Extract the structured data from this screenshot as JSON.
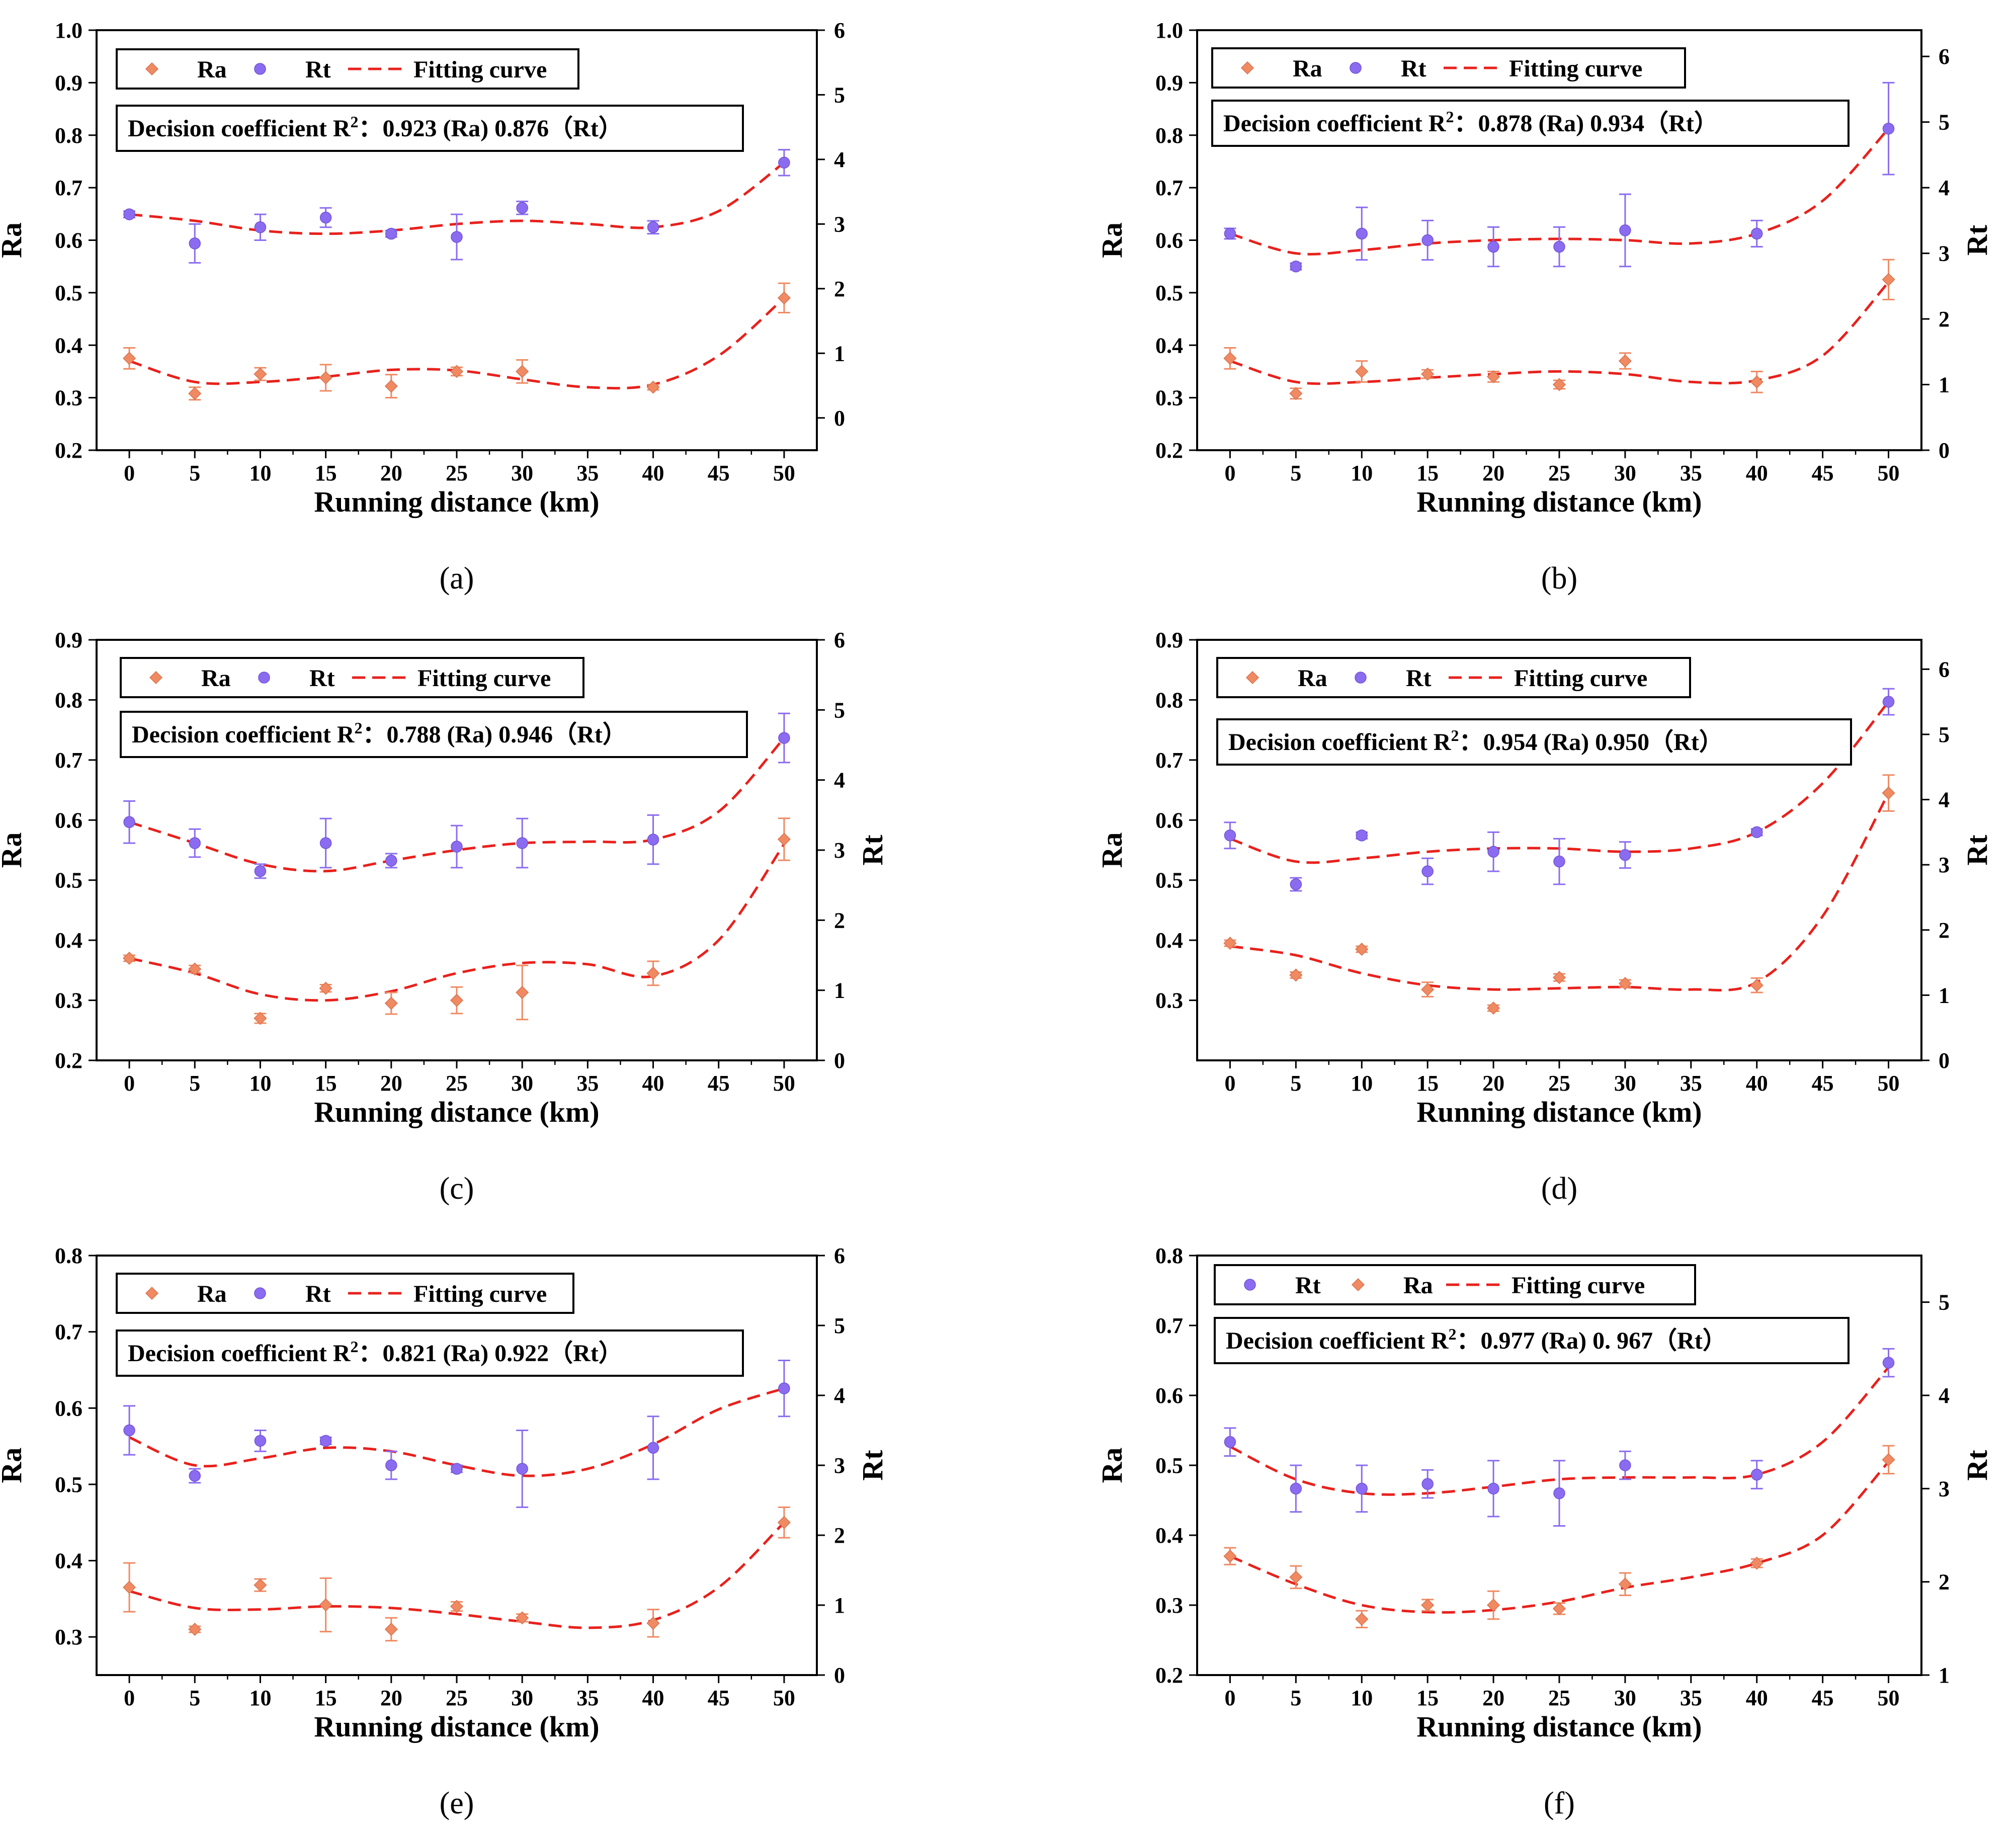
{
  "colors": {
    "ra": "#ef8a62",
    "rt": "#8b6cf0",
    "fit": "#e8211c",
    "axis": "#000000"
  },
  "chart_data": [
    {
      "panel": "a",
      "caption": "(a)",
      "type": "scatter",
      "xlabel": "Running distance (km)",
      "ylabel_left": "Ra",
      "ylabel_right": "",
      "xlim": [
        -2.5,
        52.5
      ],
      "xticks": [
        "0",
        "5",
        "10",
        "15",
        "20",
        "25",
        "30",
        "35",
        "40",
        "45",
        "50"
      ],
      "ylim_left": [
        0.2,
        1.0
      ],
      "yticks_left": [
        "0.2",
        "0.3",
        "0.4",
        "0.5",
        "0.6",
        "0.7",
        "0.8",
        "0.9",
        "1.0"
      ],
      "ylim_right": [
        -0.5,
        6
      ],
      "yticks_right": [
        "0",
        "1",
        "2",
        "3",
        "4",
        "5",
        "6"
      ],
      "legend": [
        "Ra",
        "Rt",
        "Fitting curve"
      ],
      "legend_order": [
        "ra",
        "rt",
        "fit"
      ],
      "r2_text": {
        "label": "Decision coefficient R",
        "sup": "2",
        "rest": "：0.923 (Ra)   0.876（Rt）"
      },
      "x": [
        0,
        5,
        10,
        15,
        20,
        25,
        30,
        40,
        50
      ],
      "series": [
        {
          "name": "Ra",
          "axis": "left",
          "values": [
            0.375,
            0.308,
            0.345,
            0.338,
            0.322,
            0.35,
            0.35,
            0.32,
            0.49
          ],
          "errors": [
            0.02,
            0.012,
            0.012,
            0.025,
            0.022,
            0.008,
            0.022,
            0.005,
            0.028
          ]
        },
        {
          "name": "Rt",
          "axis": "right",
          "values": [
            3.15,
            2.7,
            2.95,
            3.1,
            2.85,
            2.8,
            3.25,
            2.95,
            3.95
          ],
          "errors": [
            0.05,
            0.3,
            0.2,
            0.15,
            0.05,
            0.35,
            0.1,
            0.1,
            0.2
          ]
        }
      ],
      "fit_ra": {
        "x": [
          0,
          5,
          10,
          15,
          20,
          25,
          30,
          35,
          40,
          45,
          50
        ],
        "y": [
          0.37,
          0.33,
          0.33,
          0.34,
          0.353,
          0.352,
          0.335,
          0.32,
          0.325,
          0.38,
          0.49
        ]
      },
      "fit_rt": {
        "x": [
          0,
          5,
          10,
          15,
          20,
          25,
          30,
          35,
          40,
          45,
          50
        ],
        "y": [
          3.15,
          3.05,
          2.9,
          2.85,
          2.9,
          3.0,
          3.05,
          3.0,
          2.95,
          3.2,
          3.95
        ]
      }
    },
    {
      "panel": "b",
      "caption": "(b)",
      "type": "scatter",
      "xlabel": "Running distance (km)",
      "ylabel_left": "Ra",
      "ylabel_right": "Rt",
      "xlim": [
        -2.5,
        52.5
      ],
      "xticks": [
        "0",
        "5",
        "10",
        "15",
        "20",
        "25",
        "30",
        "35",
        "40",
        "45",
        "50"
      ],
      "ylim_left": [
        0.2,
        1.0
      ],
      "yticks_left": [
        "0.2",
        "0.3",
        "0.4",
        "0.5",
        "0.6",
        "0.7",
        "0.8",
        "0.9",
        "1.0"
      ],
      "ylim_right": [
        0,
        6.4
      ],
      "yticks_right": [
        "0",
        "1",
        "2",
        "3",
        "4",
        "5",
        "6"
      ],
      "legend": [
        "Ra",
        "Rt",
        "Fitting curve"
      ],
      "legend_order": [
        "ra",
        "rt",
        "fit"
      ],
      "r2_text": {
        "label": "Decision coefficient R",
        "sup": "2",
        "rest": "：0.878 (Ra)   0.934（Rt）"
      },
      "x": [
        0,
        5,
        10,
        15,
        20,
        25,
        30,
        40,
        50
      ],
      "series": [
        {
          "name": "Ra",
          "axis": "left",
          "values": [
            0.375,
            0.308,
            0.35,
            0.345,
            0.34,
            0.325,
            0.37,
            0.33,
            0.525
          ],
          "errors": [
            0.02,
            0.01,
            0.02,
            0.008,
            0.01,
            0.008,
            0.015,
            0.02,
            0.038
          ]
        },
        {
          "name": "Rt",
          "axis": "right",
          "values": [
            3.3,
            2.8,
            3.3,
            3.2,
            3.1,
            3.1,
            3.35,
            3.3,
            4.9
          ],
          "errors": [
            0.08,
            0.05,
            0.4,
            0.3,
            0.3,
            0.3,
            0.55,
            0.2,
            0.7
          ]
        }
      ],
      "fit_ra": {
        "x": [
          0,
          5,
          10,
          15,
          20,
          25,
          30,
          35,
          40,
          45,
          50
        ],
        "y": [
          0.37,
          0.33,
          0.33,
          0.338,
          0.345,
          0.35,
          0.345,
          0.33,
          0.333,
          0.38,
          0.52
        ]
      },
      "fit_rt": {
        "x": [
          0,
          5,
          10,
          15,
          20,
          25,
          30,
          35,
          40,
          45,
          50
        ],
        "y": [
          3.3,
          3.0,
          3.05,
          3.15,
          3.2,
          3.22,
          3.2,
          3.15,
          3.3,
          3.8,
          4.9
        ]
      }
    },
    {
      "panel": "c",
      "caption": "(c)",
      "type": "scatter",
      "xlabel": "Running distance (km)",
      "ylabel_left": "Ra",
      "ylabel_right": "Rt",
      "xlim": [
        -2.5,
        52.5
      ],
      "xticks": [
        "0",
        "5",
        "10",
        "15",
        "20",
        "25",
        "30",
        "35",
        "40",
        "45",
        "50"
      ],
      "ylim_left": [
        0.2,
        0.9
      ],
      "yticks_left": [
        "0.2",
        "0.3",
        "0.4",
        "0.5",
        "0.6",
        "0.7",
        "0.8",
        "0.9"
      ],
      "ylim_right": [
        0,
        6
      ],
      "yticks_right": [
        "0",
        "1",
        "2",
        "3",
        "4",
        "5",
        "6"
      ],
      "legend": [
        "Ra",
        "Rt",
        "Fitting curve"
      ],
      "legend_order": [
        "ra",
        "rt",
        "fit"
      ],
      "r2_text": {
        "label": "Decision coefficient R",
        "sup": "2",
        "rest": "：0.788 (Ra)   0.946（Rt）"
      },
      "x": [
        0,
        5,
        10,
        15,
        20,
        25,
        30,
        40,
        50
      ],
      "series": [
        {
          "name": "Ra",
          "axis": "left",
          "values": [
            0.37,
            0.352,
            0.27,
            0.32,
            0.295,
            0.3,
            0.313,
            0.345,
            0.568
          ],
          "errors": [
            0.005,
            0.006,
            0.008,
            0.006,
            0.018,
            0.022,
            0.045,
            0.02,
            0.035
          ]
        },
        {
          "name": "Rt",
          "axis": "right",
          "values": [
            3.4,
            3.1,
            2.7,
            3.1,
            2.85,
            3.05,
            3.1,
            3.15,
            4.6
          ],
          "errors": [
            0.3,
            0.2,
            0.1,
            0.35,
            0.1,
            0.3,
            0.35,
            0.35,
            0.35
          ]
        }
      ],
      "fit_ra": {
        "x": [
          0,
          5,
          10,
          15,
          20,
          25,
          30,
          35,
          40,
          45,
          50
        ],
        "y": [
          0.37,
          0.345,
          0.31,
          0.3,
          0.315,
          0.345,
          0.362,
          0.36,
          0.34,
          0.4,
          0.56
        ]
      },
      "fit_rt": {
        "x": [
          0,
          5,
          10,
          15,
          20,
          25,
          30,
          35,
          40,
          45,
          50
        ],
        "y": [
          3.4,
          3.1,
          2.8,
          2.7,
          2.85,
          3.0,
          3.1,
          3.12,
          3.15,
          3.55,
          4.6
        ]
      }
    },
    {
      "panel": "d",
      "caption": "(d)",
      "type": "scatter",
      "xlabel": "Running distance (km)",
      "ylabel_left": "Ra",
      "ylabel_right": "Rt",
      "xlim": [
        -2.5,
        52.5
      ],
      "xticks": [
        "0",
        "5",
        "10",
        "15",
        "20",
        "25",
        "30",
        "35",
        "40",
        "45",
        "50"
      ],
      "ylim_left": [
        0.2,
        0.9
      ],
      "yticks_left": [
        "0.3",
        "0.4",
        "0.5",
        "0.6",
        "0.7",
        "0.8",
        "0.9"
      ],
      "ylim_right": [
        0,
        6.45
      ],
      "yticks_right": [
        "0",
        "1",
        "2",
        "3",
        "4",
        "5",
        "6"
      ],
      "legend": [
        "Ra",
        "Rt",
        "Fitting curve"
      ],
      "legend_order": [
        "ra",
        "rt",
        "fit"
      ],
      "r2_text": {
        "label": "Decision coefficient R",
        "sup": "2",
        "rest": "：0.954 (Ra)   0.950（Rt）"
      },
      "x": [
        0,
        5,
        10,
        15,
        20,
        25,
        30,
        40,
        50
      ],
      "series": [
        {
          "name": "Ra",
          "axis": "left",
          "values": [
            0.395,
            0.342,
            0.385,
            0.318,
            0.287,
            0.338,
            0.328,
            0.325,
            0.645
          ],
          "errors": [
            0.005,
            0.005,
            0.005,
            0.012,
            0.005,
            0.006,
            0.006,
            0.012,
            0.03
          ]
        },
        {
          "name": "Rt",
          "axis": "right",
          "values": [
            3.45,
            2.7,
            3.45,
            2.9,
            3.2,
            3.05,
            3.15,
            3.5,
            5.5
          ],
          "errors": [
            0.2,
            0.1,
            0.05,
            0.2,
            0.3,
            0.35,
            0.2,
            0.05,
            0.2
          ]
        }
      ],
      "fit_ra": {
        "x": [
          0,
          5,
          10,
          15,
          20,
          25,
          30,
          35,
          40,
          45,
          50
        ],
        "y": [
          0.39,
          0.375,
          0.345,
          0.325,
          0.318,
          0.32,
          0.322,
          0.318,
          0.33,
          0.44,
          0.645
        ]
      },
      "fit_rt": {
        "x": [
          0,
          5,
          10,
          15,
          20,
          25,
          30,
          35,
          40,
          45,
          50
        ],
        "y": [
          3.4,
          3.05,
          3.1,
          3.2,
          3.25,
          3.25,
          3.2,
          3.25,
          3.5,
          4.25,
          5.5
        ]
      }
    },
    {
      "panel": "e",
      "caption": "(e)",
      "type": "scatter",
      "xlabel": "Running distance (km)",
      "ylabel_left": "Ra",
      "ylabel_right": "Rt",
      "xlim": [
        -2.5,
        52.5
      ],
      "xticks": [
        "0",
        "5",
        "10",
        "15",
        "20",
        "25",
        "30",
        "35",
        "40",
        "45",
        "50"
      ],
      "ylim_left": [
        0.25,
        0.8
      ],
      "yticks_left": [
        "0.3",
        "0.4",
        "0.5",
        "0.6",
        "0.7",
        "0.8"
      ],
      "ylim_right": [
        0,
        6
      ],
      "yticks_right": [
        "0",
        "1",
        "2",
        "3",
        "4",
        "5",
        "6"
      ],
      "legend": [
        "Ra",
        "Rt",
        "Fitting curve"
      ],
      "legend_order": [
        "ra",
        "rt",
        "fit"
      ],
      "r2_text": {
        "label": "Decision coefficient R",
        "sup": "2",
        "rest": "：0.821 (Ra)   0.922（Rt）"
      },
      "x": [
        0,
        5,
        10,
        15,
        20,
        25,
        30,
        40,
        50
      ],
      "series": [
        {
          "name": "Ra",
          "axis": "left",
          "values": [
            0.365,
            0.31,
            0.368,
            0.342,
            0.31,
            0.34,
            0.325,
            0.318,
            0.45
          ],
          "errors": [
            0.032,
            0.004,
            0.008,
            0.035,
            0.015,
            0.006,
            0.005,
            0.018,
            0.02
          ]
        },
        {
          "name": "Rt",
          "axis": "right",
          "values": [
            3.5,
            2.85,
            3.35,
            3.35,
            3.0,
            2.95,
            2.95,
            3.25,
            4.1
          ],
          "errors": [
            0.35,
            0.1,
            0.15,
            0.05,
            0.2,
            0.05,
            0.55,
            0.45,
            0.4
          ]
        }
      ],
      "fit_ra": {
        "x": [
          0,
          5,
          10,
          15,
          20,
          25,
          30,
          35,
          40,
          45,
          50
        ],
        "y": [
          0.36,
          0.338,
          0.336,
          0.34,
          0.338,
          0.33,
          0.32,
          0.312,
          0.322,
          0.365,
          0.45
        ]
      },
      "fit_rt": {
        "x": [
          0,
          5,
          10,
          15,
          20,
          25,
          30,
          35,
          40,
          45,
          50
        ],
        "y": [
          3.4,
          3.0,
          3.1,
          3.25,
          3.2,
          3.0,
          2.85,
          2.95,
          3.3,
          3.8,
          4.1
        ]
      }
    },
    {
      "panel": "f",
      "caption": "(f)",
      "type": "scatter",
      "xlabel": "Running distance (km)",
      "ylabel_left": "Ra",
      "ylabel_right": "Rt",
      "xlim": [
        -2.5,
        52.5
      ],
      "xticks": [
        "0",
        "5",
        "10",
        "15",
        "20",
        "25",
        "30",
        "35",
        "40",
        "45",
        "50"
      ],
      "ylim_left": [
        0.2,
        0.8
      ],
      "yticks_left": [
        "0.2",
        "0.3",
        "0.4",
        "0.5",
        "0.6",
        "0.7",
        "0.8"
      ],
      "ylim_right": [
        1,
        5.5
      ],
      "yticks_right": [
        "1",
        "2",
        "3",
        "4",
        "5"
      ],
      "legend": [
        "Rt",
        "Ra",
        "Fitting curve"
      ],
      "legend_order": [
        "rt",
        "ra",
        "fit"
      ],
      "r2_text": {
        "label": "Decision coefficient R",
        "sup": "2",
        "rest": "：0.977 (Ra)  0. 967（Rt）"
      },
      "x": [
        0,
        5,
        10,
        15,
        20,
        25,
        30,
        40,
        50
      ],
      "series": [
        {
          "name": "Ra",
          "axis": "left",
          "values": [
            0.37,
            0.34,
            0.28,
            0.3,
            0.3,
            0.295,
            0.33,
            0.36,
            0.508
          ],
          "errors": [
            0.012,
            0.016,
            0.012,
            0.008,
            0.02,
            0.008,
            0.016,
            0.006,
            0.02
          ]
        },
        {
          "name": "Rt",
          "axis": "right",
          "values": [
            3.5,
            3.0,
            3.0,
            3.05,
            3.0,
            2.95,
            3.25,
            3.15,
            4.35
          ],
          "errors": [
            0.15,
            0.25,
            0.25,
            0.15,
            0.3,
            0.35,
            0.15,
            0.15,
            0.15
          ]
        }
      ],
      "fit_ra": {
        "x": [
          0,
          5,
          10,
          15,
          20,
          25,
          30,
          35,
          40,
          45,
          50
        ],
        "y": [
          0.37,
          0.33,
          0.3,
          0.29,
          0.293,
          0.305,
          0.325,
          0.34,
          0.36,
          0.4,
          0.505
        ]
      },
      "fit_rt": {
        "x": [
          0,
          5,
          10,
          15,
          20,
          25,
          30,
          35,
          40,
          45,
          50
        ],
        "y": [
          3.45,
          3.1,
          2.95,
          2.95,
          3.02,
          3.1,
          3.12,
          3.12,
          3.15,
          3.5,
          4.3
        ]
      }
    }
  ]
}
